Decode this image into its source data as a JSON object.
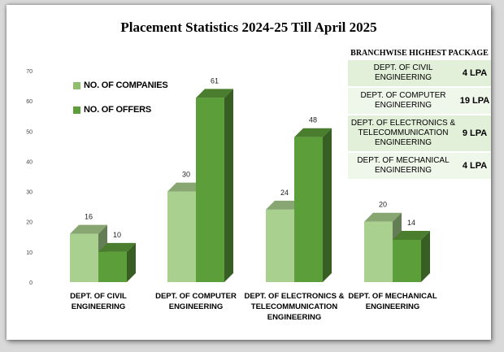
{
  "title": "Placement Statistics 2024-25  Till April 2025",
  "colors": {
    "companies": "#a9d08e",
    "offers": "#5c9e3a",
    "table_even": "#e2efd9",
    "table_odd": "#eff6ea"
  },
  "legend": [
    {
      "label": "NO. OF COMPANIES",
      "color": "#8fbf6c"
    },
    {
      "label": "NO. OF OFFERS",
      "color": "#5c9e3a"
    }
  ],
  "package_table": {
    "title": "BRANCHWISE HIGHEST PACKAGE",
    "rows": [
      {
        "dept": "DEPT. OF CIVIL ENGINEERING",
        "value": "4 LPA"
      },
      {
        "dept": "DEPT. OF COMPUTER ENGINEERING",
        "value": "19 LPA"
      },
      {
        "dept": "DEPT. OF ELECTRONICS & TELECOMMUNICATION ENGINEERING",
        "value": "9 LPA"
      },
      {
        "dept": "DEPT. OF MECHANICAL ENGINEERING",
        "value": "4 LPA"
      }
    ]
  },
  "chart_data": {
    "type": "bar",
    "title": "Placement Statistics 2024-25  Till April 2025",
    "categories": [
      [
        "DEPT. OF CIVIL",
        "ENGINEERING"
      ],
      [
        "DEPT. OF COMPUTER",
        "ENGINEERING"
      ],
      [
        "DEPT. OF ELECTRONICS &",
        "TELECOMMUNICATION",
        "ENGINEERING"
      ],
      [
        "DEPT. OF MECHANICAL",
        "ENGINEERING"
      ]
    ],
    "series": [
      {
        "name": "NO. OF COMPANIES",
        "values": [
          16,
          30,
          24,
          20
        ]
      },
      {
        "name": "NO. OF OFFERS",
        "values": [
          10,
          61,
          48,
          14
        ]
      }
    ],
    "ylim": [
      0,
      70
    ],
    "yticks": [
      0,
      10,
      20,
      30,
      40,
      50,
      60,
      70
    ],
    "data_labels": true,
    "grid": false,
    "legend_position": "top-left"
  }
}
